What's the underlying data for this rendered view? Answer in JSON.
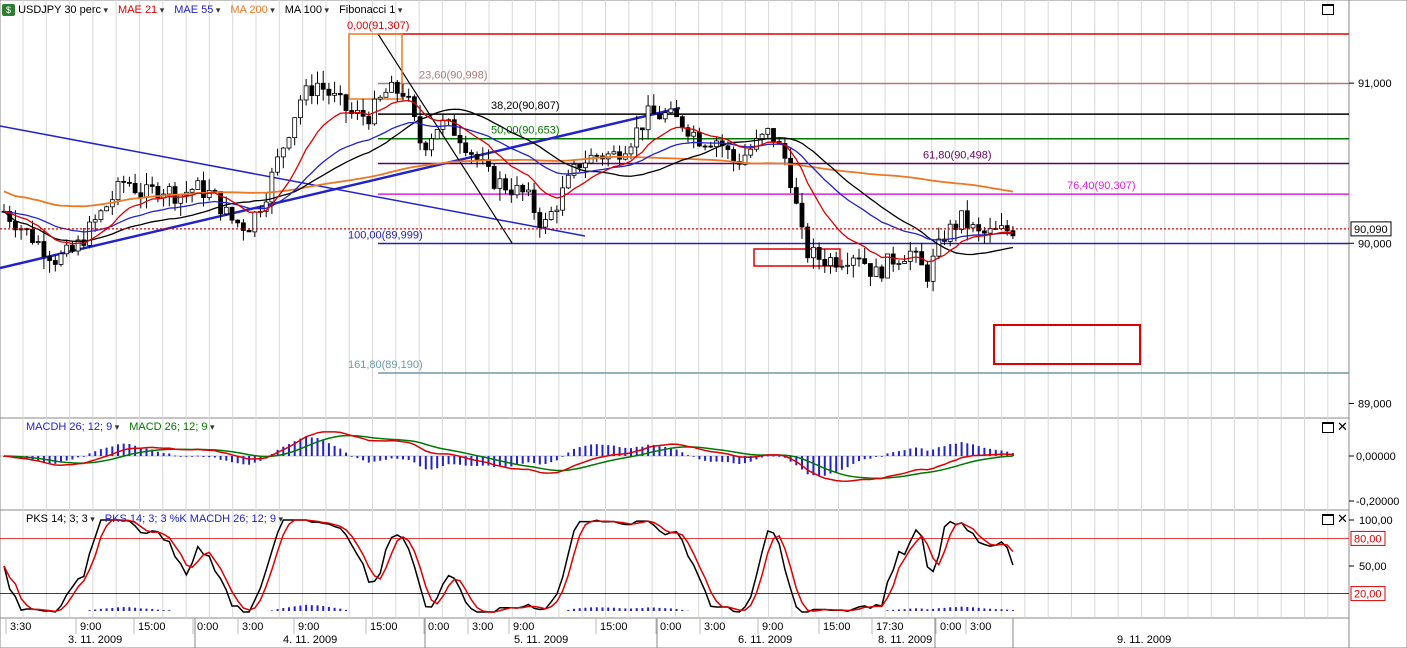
{
  "toolbar": {
    "symbol": "USDJPY 30 perc",
    "items": [
      {
        "label": "MAE 21",
        "color": "#dd0000"
      },
      {
        "label": "MAE 55",
        "color": "#2222cc"
      },
      {
        "label": "MA 200",
        "color": "#ee7722"
      },
      {
        "label": "MA 100",
        "color": "#000000"
      },
      {
        "label": "Fibonacci 1",
        "color": "#000000"
      }
    ]
  },
  "price_axis": {
    "ticks": [
      "91,000",
      "90,000",
      "89,000"
    ],
    "current_price": "90,090"
  },
  "fibonacci": [
    {
      "label": "0,00(91,307)",
      "color": "#dd0000"
    },
    {
      "label": "23,60(90,998)",
      "color": "#aa7a7a"
    },
    {
      "label": "38,20(90,807)",
      "color": "#000000"
    },
    {
      "label": "50,00(90,653)",
      "color": "#007700"
    },
    {
      "label": "61,80(90,498)",
      "color": "#660066"
    },
    {
      "label": "76,40(90,307)",
      "color": "#dd22dd"
    },
    {
      "label": "100,00(89,999)",
      "color": "#2222aa"
    },
    {
      "label": "161,80(89,190)",
      "color": "#6f9aa6"
    }
  ],
  "macd_panel": {
    "title_items": [
      {
        "label": "MACDH 26; 12; 9",
        "color": "#2222cc"
      },
      {
        "label": "MACD 26; 12; 9",
        "color": "#007700"
      }
    ],
    "ticks": [
      "0,00000",
      "-0,20000"
    ]
  },
  "stoch_panel": {
    "title_items": [
      {
        "label": "PKS 14; 3; 3",
        "color": "#000000"
      },
      {
        "label": "PKS 14; 3; 3 %K MACDH 26; 12; 9",
        "color": "#2222cc"
      }
    ],
    "ticks": [
      "100,00",
      "50,00"
    ],
    "levels": [
      "80,00",
      "20,00"
    ]
  },
  "time_axis": {
    "times": [
      "3:30",
      "9:00",
      "15:00",
      "0:00",
      "3:00",
      "9:00",
      "15:00",
      "0:00",
      "3:00",
      "9:00",
      "15:00",
      "0:00",
      "3:00",
      "9:00",
      "15:00",
      "17:30",
      "0:00",
      "3:00"
    ],
    "dates": [
      "3. 11. 2009",
      "4. 11. 2009",
      "5. 11. 2009",
      "6. 11. 2009",
      "8. 11. 2009",
      "9. 11. 2009"
    ]
  },
  "chart_data": {
    "type": "candlestick",
    "symbol": "USDJPY",
    "timeframe": "30 perc",
    "y_range": [
      88.85,
      91.45
    ],
    "last_price": 90.09,
    "indicators": [
      "MAE 21",
      "MAE 55",
      "MA 200",
      "MA 100",
      "Fibonacci 1"
    ],
    "fibonacci_levels": [
      {
        "ratio": 0.0,
        "price": 91.307
      },
      {
        "ratio": 23.6,
        "price": 90.998
      },
      {
        "ratio": 38.2,
        "price": 90.807
      },
      {
        "ratio": 50.0,
        "price": 90.653
      },
      {
        "ratio": 61.8,
        "price": 90.498
      },
      {
        "ratio": 76.4,
        "price": 90.307
      },
      {
        "ratio": 100.0,
        "price": 89.999
      },
      {
        "ratio": 161.8,
        "price": 89.19
      }
    ],
    "close_series": [
      90.2,
      90.1,
      90.0,
      89.9,
      89.95,
      90.1,
      90.25,
      90.4,
      90.3,
      90.35,
      90.3,
      90.35,
      90.3,
      90.15,
      90.1,
      90.3,
      90.6,
      90.9,
      91.0,
      90.9,
      90.8,
      90.8,
      90.95,
      90.95,
      90.6,
      90.75,
      90.7,
      90.55,
      90.4,
      90.35,
      90.3,
      90.1,
      90.3,
      90.5,
      90.55,
      90.55,
      90.65,
      90.8,
      90.8,
      90.75,
      90.65,
      90.65,
      90.5,
      90.6,
      90.7,
      90.5,
      89.95,
      89.9,
      89.9,
      89.95,
      89.8,
      89.9,
      89.95,
      89.8,
      90.05,
      90.15,
      90.05,
      90.07,
      90.09
    ],
    "panels": [
      {
        "name": "MACD 26; 12; 9",
        "y_ticks": [
          0.0,
          -0.2
        ]
      },
      {
        "name": "PKS 14; 3; 3",
        "y_ticks": [
          100,
          50
        ],
        "levels": [
          80,
          20
        ]
      }
    ]
  }
}
